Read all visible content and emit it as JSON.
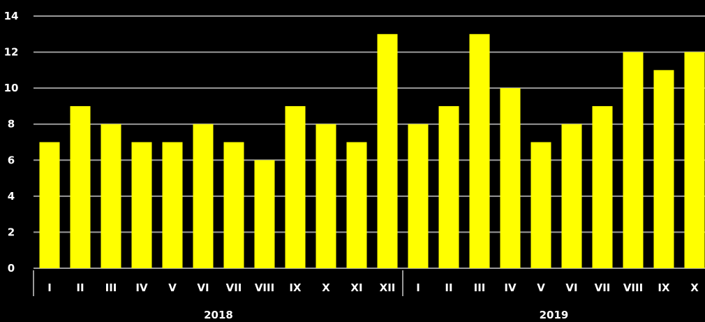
{
  "chart_data": {
    "type": "bar",
    "title": "",
    "xlabel": "",
    "ylabel": "",
    "ylim": [
      0,
      14
    ],
    "yticks": [
      "0",
      "2",
      "4",
      "6",
      "8",
      "10",
      "12",
      "14"
    ],
    "grid": true,
    "legend": "none",
    "bar_color": "#ffff00",
    "groups": [
      {
        "name": "2018",
        "categories": [
          "I",
          "II",
          "III",
          "IV",
          "V",
          "VI",
          "VII",
          "VIII",
          "IX",
          "X",
          "XI",
          "XII"
        ],
        "values": [
          7,
          9,
          8,
          7,
          7,
          8,
          7,
          6,
          9,
          8,
          7,
          13
        ]
      },
      {
        "name": "2019",
        "categories": [
          "I",
          "II",
          "III",
          "IV",
          "V",
          "VI",
          "VII",
          "VIII",
          "IX",
          "X"
        ],
        "values": [
          8,
          9,
          13,
          10,
          7,
          8,
          9,
          12,
          11,
          12
        ]
      }
    ]
  }
}
